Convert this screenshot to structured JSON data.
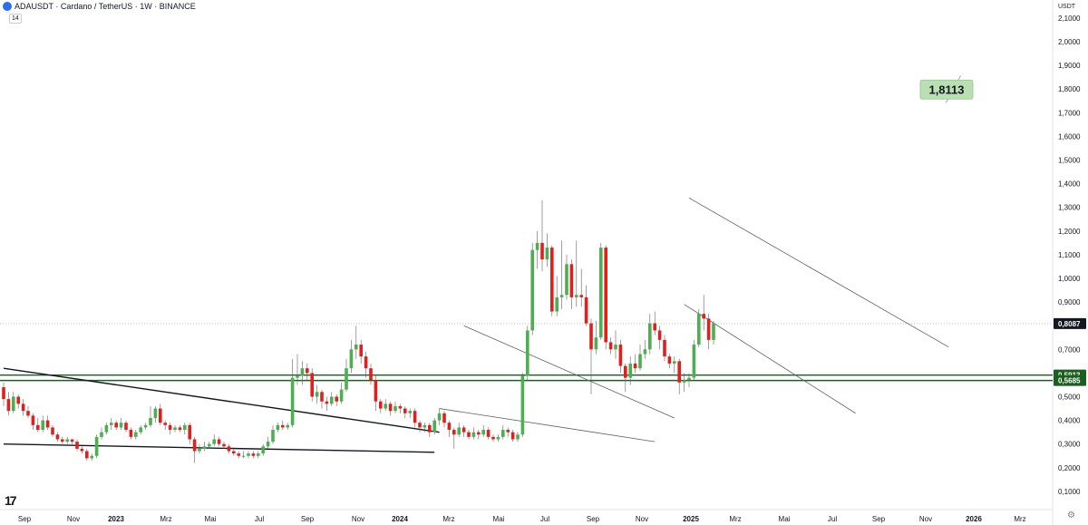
{
  "header": {
    "title": "ADAUSDT · Cardano / TetherUS · 1W · BINANCE",
    "indicator_badge": "14",
    "currency_label": "USDT"
  },
  "icons": {
    "symbol": "cardano-logo-icon",
    "brand": "tradingview-logo-icon",
    "settings": "settings-icon"
  },
  "brand_text": "17",
  "settings_glyph": "⚙",
  "colors": {
    "up": "#4caf50",
    "down": "#e0201d",
    "support": "#1b5e20",
    "target": "#b9dfb3"
  },
  "chart_data": {
    "type": "candlestick",
    "timeframe": "1W",
    "symbol": "ADAUSDT",
    "y_axis": {
      "range": [
        0.04,
        2.17
      ],
      "ticks": [
        "2,1000",
        "2,0000",
        "1,9000",
        "1,8000",
        "1,7000",
        "1,6000",
        "1,5000",
        "1,4000",
        "1,3000",
        "1,2000",
        "1,1000",
        "1,0000",
        "0,9000",
        "0,7000",
        "0,5000",
        "0,4000",
        "0,3000",
        "0,2000",
        "0,1000"
      ]
    },
    "x_axis": {
      "labels": [
        "Sep",
        "Nov",
        "2023",
        "Mrz",
        "Mai",
        "Jul",
        "Sep",
        "Nov",
        "2024",
        "Mrz",
        "Mai",
        "Jul",
        "Sep",
        "Nov",
        "2025",
        "Mrz",
        "Mai",
        "Jul",
        "Sep",
        "Nov",
        "2026",
        "Mrz"
      ],
      "bold": [
        "2023",
        "2024",
        "2025",
        "2026"
      ]
    },
    "current_price": 0.8087,
    "current_price_label": "0,8087",
    "levels": [
      {
        "value": 0.5913,
        "label": "0,5913"
      },
      {
        "value": 0.5685,
        "label": "0,5685"
      }
    ],
    "target_label": "1,8113",
    "candles": [
      {
        "o": 0.54,
        "c": 0.49,
        "h": 0.56,
        "l": 0.46
      },
      {
        "o": 0.49,
        "c": 0.44,
        "h": 0.52,
        "l": 0.42
      },
      {
        "o": 0.44,
        "c": 0.5,
        "h": 0.52,
        "l": 0.43
      },
      {
        "o": 0.5,
        "c": 0.47,
        "h": 0.51,
        "l": 0.45
      },
      {
        "o": 0.47,
        "c": 0.44,
        "h": 0.49,
        "l": 0.42
      },
      {
        "o": 0.44,
        "c": 0.42,
        "h": 0.46,
        "l": 0.41
      },
      {
        "o": 0.42,
        "c": 0.38,
        "h": 0.43,
        "l": 0.36
      },
      {
        "o": 0.38,
        "c": 0.36,
        "h": 0.41,
        "l": 0.35
      },
      {
        "o": 0.36,
        "c": 0.4,
        "h": 0.42,
        "l": 0.35
      },
      {
        "o": 0.4,
        "c": 0.37,
        "h": 0.42,
        "l": 0.36
      },
      {
        "o": 0.37,
        "c": 0.34,
        "h": 0.38,
        "l": 0.33
      },
      {
        "o": 0.34,
        "c": 0.32,
        "h": 0.35,
        "l": 0.31
      },
      {
        "o": 0.32,
        "c": 0.31,
        "h": 0.33,
        "l": 0.3
      },
      {
        "o": 0.31,
        "c": 0.32,
        "h": 0.33,
        "l": 0.3
      },
      {
        "o": 0.32,
        "c": 0.31,
        "h": 0.32,
        "l": 0.3
      },
      {
        "o": 0.31,
        "c": 0.28,
        "h": 0.32,
        "l": 0.27
      },
      {
        "o": 0.28,
        "c": 0.27,
        "h": 0.29,
        "l": 0.26
      },
      {
        "o": 0.27,
        "c": 0.24,
        "h": 0.28,
        "l": 0.23
      },
      {
        "o": 0.24,
        "c": 0.25,
        "h": 0.26,
        "l": 0.23
      },
      {
        "o": 0.25,
        "c": 0.33,
        "h": 0.34,
        "l": 0.24
      },
      {
        "o": 0.33,
        "c": 0.35,
        "h": 0.37,
        "l": 0.32
      },
      {
        "o": 0.35,
        "c": 0.38,
        "h": 0.39,
        "l": 0.34
      },
      {
        "o": 0.38,
        "c": 0.39,
        "h": 0.41,
        "l": 0.36
      },
      {
        "o": 0.39,
        "c": 0.37,
        "h": 0.4,
        "l": 0.36
      },
      {
        "o": 0.37,
        "c": 0.39,
        "h": 0.41,
        "l": 0.36
      },
      {
        "o": 0.39,
        "c": 0.36,
        "h": 0.4,
        "l": 0.35
      },
      {
        "o": 0.36,
        "c": 0.33,
        "h": 0.37,
        "l": 0.32
      },
      {
        "o": 0.33,
        "c": 0.35,
        "h": 0.36,
        "l": 0.32
      },
      {
        "o": 0.35,
        "c": 0.37,
        "h": 0.38,
        "l": 0.34
      },
      {
        "o": 0.37,
        "c": 0.38,
        "h": 0.39,
        "l": 0.36
      },
      {
        "o": 0.38,
        "c": 0.41,
        "h": 0.46,
        "l": 0.37
      },
      {
        "o": 0.41,
        "c": 0.45,
        "h": 0.46,
        "l": 0.39
      },
      {
        "o": 0.45,
        "c": 0.39,
        "h": 0.47,
        "l": 0.38
      },
      {
        "o": 0.39,
        "c": 0.38,
        "h": 0.4,
        "l": 0.36
      },
      {
        "o": 0.38,
        "c": 0.36,
        "h": 0.39,
        "l": 0.34
      },
      {
        "o": 0.36,
        "c": 0.37,
        "h": 0.38,
        "l": 0.35
      },
      {
        "o": 0.37,
        "c": 0.36,
        "h": 0.38,
        "l": 0.35
      },
      {
        "o": 0.36,
        "c": 0.38,
        "h": 0.39,
        "l": 0.34
      },
      {
        "o": 0.38,
        "c": 0.32,
        "h": 0.39,
        "l": 0.3
      },
      {
        "o": 0.32,
        "c": 0.27,
        "h": 0.33,
        "l": 0.22
      },
      {
        "o": 0.27,
        "c": 0.28,
        "h": 0.3,
        "l": 0.26
      },
      {
        "o": 0.28,
        "c": 0.29,
        "h": 0.31,
        "l": 0.27
      },
      {
        "o": 0.29,
        "c": 0.3,
        "h": 0.31,
        "l": 0.28
      },
      {
        "o": 0.3,
        "c": 0.32,
        "h": 0.34,
        "l": 0.29
      },
      {
        "o": 0.32,
        "c": 0.3,
        "h": 0.33,
        "l": 0.29
      },
      {
        "o": 0.3,
        "c": 0.29,
        "h": 0.31,
        "l": 0.28
      },
      {
        "o": 0.29,
        "c": 0.27,
        "h": 0.3,
        "l": 0.26
      },
      {
        "o": 0.27,
        "c": 0.26,
        "h": 0.28,
        "l": 0.25
      },
      {
        "o": 0.26,
        "c": 0.25,
        "h": 0.27,
        "l": 0.24
      },
      {
        "o": 0.25,
        "c": 0.25,
        "h": 0.27,
        "l": 0.24
      },
      {
        "o": 0.25,
        "c": 0.26,
        "h": 0.27,
        "l": 0.24
      },
      {
        "o": 0.26,
        "c": 0.25,
        "h": 0.27,
        "l": 0.24
      },
      {
        "o": 0.25,
        "c": 0.26,
        "h": 0.27,
        "l": 0.24
      },
      {
        "o": 0.26,
        "c": 0.29,
        "h": 0.3,
        "l": 0.25
      },
      {
        "o": 0.29,
        "c": 0.31,
        "h": 0.33,
        "l": 0.28
      },
      {
        "o": 0.31,
        "c": 0.36,
        "h": 0.38,
        "l": 0.3
      },
      {
        "o": 0.36,
        "c": 0.38,
        "h": 0.39,
        "l": 0.35
      },
      {
        "o": 0.38,
        "c": 0.37,
        "h": 0.4,
        "l": 0.36
      },
      {
        "o": 0.37,
        "c": 0.38,
        "h": 0.39,
        "l": 0.36
      },
      {
        "o": 0.38,
        "c": 0.58,
        "h": 0.66,
        "l": 0.37
      },
      {
        "o": 0.58,
        "c": 0.59,
        "h": 0.68,
        "l": 0.55
      },
      {
        "o": 0.59,
        "c": 0.62,
        "h": 0.65,
        "l": 0.55
      },
      {
        "o": 0.62,
        "c": 0.6,
        "h": 0.64,
        "l": 0.57
      },
      {
        "o": 0.6,
        "c": 0.5,
        "h": 0.62,
        "l": 0.48
      },
      {
        "o": 0.5,
        "c": 0.52,
        "h": 0.55,
        "l": 0.47
      },
      {
        "o": 0.52,
        "c": 0.48,
        "h": 0.53,
        "l": 0.45
      },
      {
        "o": 0.48,
        "c": 0.47,
        "h": 0.5,
        "l": 0.44
      },
      {
        "o": 0.47,
        "c": 0.5,
        "h": 0.52,
        "l": 0.46
      },
      {
        "o": 0.5,
        "c": 0.48,
        "h": 0.51,
        "l": 0.46
      },
      {
        "o": 0.48,
        "c": 0.53,
        "h": 0.56,
        "l": 0.47
      },
      {
        "o": 0.53,
        "c": 0.62,
        "h": 0.66,
        "l": 0.52
      },
      {
        "o": 0.62,
        "c": 0.7,
        "h": 0.74,
        "l": 0.6
      },
      {
        "o": 0.7,
        "c": 0.72,
        "h": 0.8,
        "l": 0.66
      },
      {
        "o": 0.72,
        "c": 0.67,
        "h": 0.74,
        "l": 0.64
      },
      {
        "o": 0.67,
        "c": 0.62,
        "h": 0.69,
        "l": 0.58
      },
      {
        "o": 0.62,
        "c": 0.57,
        "h": 0.64,
        "l": 0.55
      },
      {
        "o": 0.57,
        "c": 0.48,
        "h": 0.59,
        "l": 0.44
      },
      {
        "o": 0.48,
        "c": 0.45,
        "h": 0.49,
        "l": 0.43
      },
      {
        "o": 0.45,
        "c": 0.47,
        "h": 0.49,
        "l": 0.44
      },
      {
        "o": 0.47,
        "c": 0.44,
        "h": 0.48,
        "l": 0.42
      },
      {
        "o": 0.44,
        "c": 0.46,
        "h": 0.48,
        "l": 0.43
      },
      {
        "o": 0.46,
        "c": 0.45,
        "h": 0.47,
        "l": 0.43
      },
      {
        "o": 0.45,
        "c": 0.43,
        "h": 0.46,
        "l": 0.41
      },
      {
        "o": 0.43,
        "c": 0.44,
        "h": 0.45,
        "l": 0.41
      },
      {
        "o": 0.44,
        "c": 0.39,
        "h": 0.45,
        "l": 0.37
      },
      {
        "o": 0.39,
        "c": 0.37,
        "h": 0.4,
        "l": 0.35
      },
      {
        "o": 0.37,
        "c": 0.38,
        "h": 0.39,
        "l": 0.35
      },
      {
        "o": 0.38,
        "c": 0.35,
        "h": 0.39,
        "l": 0.33
      },
      {
        "o": 0.35,
        "c": 0.4,
        "h": 0.41,
        "l": 0.34
      },
      {
        "o": 0.4,
        "c": 0.43,
        "h": 0.45,
        "l": 0.38
      },
      {
        "o": 0.43,
        "c": 0.39,
        "h": 0.44,
        "l": 0.37
      },
      {
        "o": 0.39,
        "c": 0.36,
        "h": 0.4,
        "l": 0.33
      },
      {
        "o": 0.36,
        "c": 0.34,
        "h": 0.37,
        "l": 0.28
      },
      {
        "o": 0.34,
        "c": 0.37,
        "h": 0.39,
        "l": 0.33
      },
      {
        "o": 0.37,
        "c": 0.35,
        "h": 0.38,
        "l": 0.33
      },
      {
        "o": 0.35,
        "c": 0.33,
        "h": 0.36,
        "l": 0.32
      },
      {
        "o": 0.33,
        "c": 0.35,
        "h": 0.37,
        "l": 0.32
      },
      {
        "o": 0.35,
        "c": 0.34,
        "h": 0.36,
        "l": 0.32
      },
      {
        "o": 0.34,
        "c": 0.36,
        "h": 0.38,
        "l": 0.33
      },
      {
        "o": 0.36,
        "c": 0.33,
        "h": 0.37,
        "l": 0.32
      },
      {
        "o": 0.33,
        "c": 0.32,
        "h": 0.34,
        "l": 0.31
      },
      {
        "o": 0.32,
        "c": 0.33,
        "h": 0.34,
        "l": 0.31
      },
      {
        "o": 0.33,
        "c": 0.36,
        "h": 0.38,
        "l": 0.32
      },
      {
        "o": 0.36,
        "c": 0.35,
        "h": 0.37,
        "l": 0.33
      },
      {
        "o": 0.35,
        "c": 0.32,
        "h": 0.36,
        "l": 0.31
      },
      {
        "o": 0.32,
        "c": 0.34,
        "h": 0.35,
        "l": 0.31
      },
      {
        "o": 0.34,
        "c": 0.59,
        "h": 0.6,
        "l": 0.33
      },
      {
        "o": 0.59,
        "c": 0.78,
        "h": 0.8,
        "l": 0.57
      },
      {
        "o": 0.78,
        "c": 1.12,
        "h": 1.15,
        "l": 0.76
      },
      {
        "o": 1.12,
        "c": 1.15,
        "h": 1.2,
        "l": 1.04
      },
      {
        "o": 1.15,
        "c": 1.08,
        "h": 1.33,
        "l": 1.03
      },
      {
        "o": 1.08,
        "c": 1.13,
        "h": 1.19,
        "l": 1.05
      },
      {
        "o": 1.13,
        "c": 0.86,
        "h": 1.14,
        "l": 0.84
      },
      {
        "o": 0.86,
        "c": 0.92,
        "h": 1.01,
        "l": 0.84
      },
      {
        "o": 0.92,
        "c": 0.93,
        "h": 1.16,
        "l": 0.87
      },
      {
        "o": 0.93,
        "c": 1.06,
        "h": 1.1,
        "l": 0.91
      },
      {
        "o": 1.06,
        "c": 0.92,
        "h": 1.08,
        "l": 0.87
      },
      {
        "o": 0.92,
        "c": 0.93,
        "h": 1.16,
        "l": 0.88
      },
      {
        "o": 0.93,
        "c": 0.92,
        "h": 1.04,
        "l": 0.88
      },
      {
        "o": 0.92,
        "c": 0.81,
        "h": 0.97,
        "l": 0.8
      },
      {
        "o": 0.81,
        "c": 0.7,
        "h": 0.83,
        "l": 0.51
      },
      {
        "o": 0.7,
        "c": 0.75,
        "h": 0.82,
        "l": 0.68
      },
      {
        "o": 0.75,
        "c": 1.13,
        "h": 1.15,
        "l": 0.74
      },
      {
        "o": 1.13,
        "c": 0.73,
        "h": 1.14,
        "l": 0.7
      },
      {
        "o": 0.73,
        "c": 0.7,
        "h": 0.75,
        "l": 0.68
      },
      {
        "o": 0.7,
        "c": 0.72,
        "h": 0.78,
        "l": 0.66
      },
      {
        "o": 0.72,
        "c": 0.63,
        "h": 0.74,
        "l": 0.6
      },
      {
        "o": 0.63,
        "c": 0.58,
        "h": 0.64,
        "l": 0.52
      },
      {
        "o": 0.58,
        "c": 0.64,
        "h": 0.67,
        "l": 0.55
      },
      {
        "o": 0.64,
        "c": 0.62,
        "h": 0.68,
        "l": 0.6
      },
      {
        "o": 0.62,
        "c": 0.68,
        "h": 0.72,
        "l": 0.61
      },
      {
        "o": 0.68,
        "c": 0.7,
        "h": 0.74,
        "l": 0.66
      },
      {
        "o": 0.7,
        "c": 0.81,
        "h": 0.85,
        "l": 0.68
      },
      {
        "o": 0.81,
        "c": 0.78,
        "h": 0.86,
        "l": 0.76
      },
      {
        "o": 0.78,
        "c": 0.74,
        "h": 0.8,
        "l": 0.7
      },
      {
        "o": 0.74,
        "c": 0.67,
        "h": 0.76,
        "l": 0.65
      },
      {
        "o": 0.67,
        "c": 0.64,
        "h": 0.68,
        "l": 0.62
      },
      {
        "o": 0.64,
        "c": 0.65,
        "h": 0.67,
        "l": 0.6
      },
      {
        "o": 0.65,
        "c": 0.56,
        "h": 0.66,
        "l": 0.51
      },
      {
        "o": 0.56,
        "c": 0.57,
        "h": 0.6,
        "l": 0.52
      },
      {
        "o": 0.57,
        "c": 0.58,
        "h": 0.6,
        "l": 0.54
      },
      {
        "o": 0.58,
        "c": 0.72,
        "h": 0.74,
        "l": 0.57
      },
      {
        "o": 0.72,
        "c": 0.85,
        "h": 0.87,
        "l": 0.71
      },
      {
        "o": 0.85,
        "c": 0.83,
        "h": 0.93,
        "l": 0.78
      },
      {
        "o": 0.83,
        "c": 0.74,
        "h": 0.85,
        "l": 0.7
      },
      {
        "o": 0.74,
        "c": 0.81,
        "h": 0.82,
        "l": 0.72
      }
    ],
    "trendlines": [
      {
        "x1": 0,
        "y1": 0.62,
        "x2": 89,
        "y2": 0.35
      },
      {
        "x1": 0,
        "y1": 0.3,
        "x2": 88,
        "y2": 0.265
      },
      {
        "x1": 94,
        "y1": 0.8,
        "x2": 137,
        "y2": 0.41
      },
      {
        "x1": 89,
        "y1": 0.45,
        "x2": 133,
        "y2": 0.31
      },
      {
        "x1": 140,
        "y1": 1.34,
        "x2": 193,
        "y2": 0.71
      },
      {
        "x1": 139,
        "y1": 0.89,
        "x2": 174,
        "y2": 0.43
      }
    ],
    "target_arrow": {
      "x1": 193,
      "y1": 1.81,
      "x2": 194,
      "y2": 1.88
    }
  }
}
